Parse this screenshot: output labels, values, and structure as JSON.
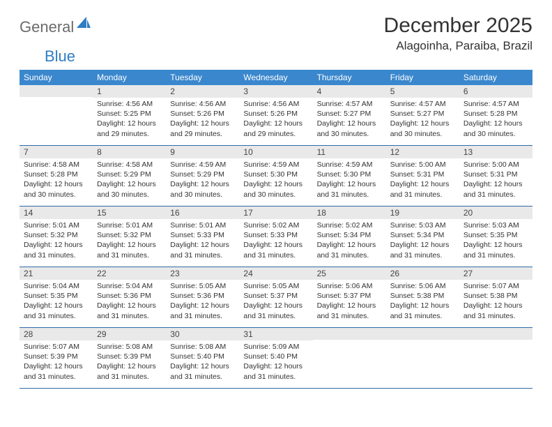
{
  "logo": {
    "text1": "General",
    "text2": "Blue"
  },
  "title": "December 2025",
  "location": "Alagoinha, Paraiba, Brazil",
  "weekdays": [
    "Sunday",
    "Monday",
    "Tuesday",
    "Wednesday",
    "Thursday",
    "Friday",
    "Saturday"
  ],
  "colors": {
    "header_bg": "#3a87cd",
    "header_text": "#ffffff",
    "daynum_bg": "#e9e9e9",
    "row_border": "#2f6aa8",
    "logo_gray": "#6b6b6b",
    "logo_blue": "#2f7dc4"
  },
  "weeks": [
    [
      {
        "n": "",
        "lines": []
      },
      {
        "n": "1",
        "lines": [
          "Sunrise: 4:56 AM",
          "Sunset: 5:25 PM",
          "Daylight: 12 hours",
          "and 29 minutes."
        ]
      },
      {
        "n": "2",
        "lines": [
          "Sunrise: 4:56 AM",
          "Sunset: 5:26 PM",
          "Daylight: 12 hours",
          "and 29 minutes."
        ]
      },
      {
        "n": "3",
        "lines": [
          "Sunrise: 4:56 AM",
          "Sunset: 5:26 PM",
          "Daylight: 12 hours",
          "and 29 minutes."
        ]
      },
      {
        "n": "4",
        "lines": [
          "Sunrise: 4:57 AM",
          "Sunset: 5:27 PM",
          "Daylight: 12 hours",
          "and 30 minutes."
        ]
      },
      {
        "n": "5",
        "lines": [
          "Sunrise: 4:57 AM",
          "Sunset: 5:27 PM",
          "Daylight: 12 hours",
          "and 30 minutes."
        ]
      },
      {
        "n": "6",
        "lines": [
          "Sunrise: 4:57 AM",
          "Sunset: 5:28 PM",
          "Daylight: 12 hours",
          "and 30 minutes."
        ]
      }
    ],
    [
      {
        "n": "7",
        "lines": [
          "Sunrise: 4:58 AM",
          "Sunset: 5:28 PM",
          "Daylight: 12 hours",
          "and 30 minutes."
        ]
      },
      {
        "n": "8",
        "lines": [
          "Sunrise: 4:58 AM",
          "Sunset: 5:29 PM",
          "Daylight: 12 hours",
          "and 30 minutes."
        ]
      },
      {
        "n": "9",
        "lines": [
          "Sunrise: 4:59 AM",
          "Sunset: 5:29 PM",
          "Daylight: 12 hours",
          "and 30 minutes."
        ]
      },
      {
        "n": "10",
        "lines": [
          "Sunrise: 4:59 AM",
          "Sunset: 5:30 PM",
          "Daylight: 12 hours",
          "and 30 minutes."
        ]
      },
      {
        "n": "11",
        "lines": [
          "Sunrise: 4:59 AM",
          "Sunset: 5:30 PM",
          "Daylight: 12 hours",
          "and 31 minutes."
        ]
      },
      {
        "n": "12",
        "lines": [
          "Sunrise: 5:00 AM",
          "Sunset: 5:31 PM",
          "Daylight: 12 hours",
          "and 31 minutes."
        ]
      },
      {
        "n": "13",
        "lines": [
          "Sunrise: 5:00 AM",
          "Sunset: 5:31 PM",
          "Daylight: 12 hours",
          "and 31 minutes."
        ]
      }
    ],
    [
      {
        "n": "14",
        "lines": [
          "Sunrise: 5:01 AM",
          "Sunset: 5:32 PM",
          "Daylight: 12 hours",
          "and 31 minutes."
        ]
      },
      {
        "n": "15",
        "lines": [
          "Sunrise: 5:01 AM",
          "Sunset: 5:32 PM",
          "Daylight: 12 hours",
          "and 31 minutes."
        ]
      },
      {
        "n": "16",
        "lines": [
          "Sunrise: 5:01 AM",
          "Sunset: 5:33 PM",
          "Daylight: 12 hours",
          "and 31 minutes."
        ]
      },
      {
        "n": "17",
        "lines": [
          "Sunrise: 5:02 AM",
          "Sunset: 5:33 PM",
          "Daylight: 12 hours",
          "and 31 minutes."
        ]
      },
      {
        "n": "18",
        "lines": [
          "Sunrise: 5:02 AM",
          "Sunset: 5:34 PM",
          "Daylight: 12 hours",
          "and 31 minutes."
        ]
      },
      {
        "n": "19",
        "lines": [
          "Sunrise: 5:03 AM",
          "Sunset: 5:34 PM",
          "Daylight: 12 hours",
          "and 31 minutes."
        ]
      },
      {
        "n": "20",
        "lines": [
          "Sunrise: 5:03 AM",
          "Sunset: 5:35 PM",
          "Daylight: 12 hours",
          "and 31 minutes."
        ]
      }
    ],
    [
      {
        "n": "21",
        "lines": [
          "Sunrise: 5:04 AM",
          "Sunset: 5:35 PM",
          "Daylight: 12 hours",
          "and 31 minutes."
        ]
      },
      {
        "n": "22",
        "lines": [
          "Sunrise: 5:04 AM",
          "Sunset: 5:36 PM",
          "Daylight: 12 hours",
          "and 31 minutes."
        ]
      },
      {
        "n": "23",
        "lines": [
          "Sunrise: 5:05 AM",
          "Sunset: 5:36 PM",
          "Daylight: 12 hours",
          "and 31 minutes."
        ]
      },
      {
        "n": "24",
        "lines": [
          "Sunrise: 5:05 AM",
          "Sunset: 5:37 PM",
          "Daylight: 12 hours",
          "and 31 minutes."
        ]
      },
      {
        "n": "25",
        "lines": [
          "Sunrise: 5:06 AM",
          "Sunset: 5:37 PM",
          "Daylight: 12 hours",
          "and 31 minutes."
        ]
      },
      {
        "n": "26",
        "lines": [
          "Sunrise: 5:06 AM",
          "Sunset: 5:38 PM",
          "Daylight: 12 hours",
          "and 31 minutes."
        ]
      },
      {
        "n": "27",
        "lines": [
          "Sunrise: 5:07 AM",
          "Sunset: 5:38 PM",
          "Daylight: 12 hours",
          "and 31 minutes."
        ]
      }
    ],
    [
      {
        "n": "28",
        "lines": [
          "Sunrise: 5:07 AM",
          "Sunset: 5:39 PM",
          "Daylight: 12 hours",
          "and 31 minutes."
        ]
      },
      {
        "n": "29",
        "lines": [
          "Sunrise: 5:08 AM",
          "Sunset: 5:39 PM",
          "Daylight: 12 hours",
          "and 31 minutes."
        ]
      },
      {
        "n": "30",
        "lines": [
          "Sunrise: 5:08 AM",
          "Sunset: 5:40 PM",
          "Daylight: 12 hours",
          "and 31 minutes."
        ]
      },
      {
        "n": "31",
        "lines": [
          "Sunrise: 5:09 AM",
          "Sunset: 5:40 PM",
          "Daylight: 12 hours",
          "and 31 minutes."
        ]
      },
      {
        "n": "",
        "lines": []
      },
      {
        "n": "",
        "lines": []
      },
      {
        "n": "",
        "lines": []
      }
    ]
  ]
}
